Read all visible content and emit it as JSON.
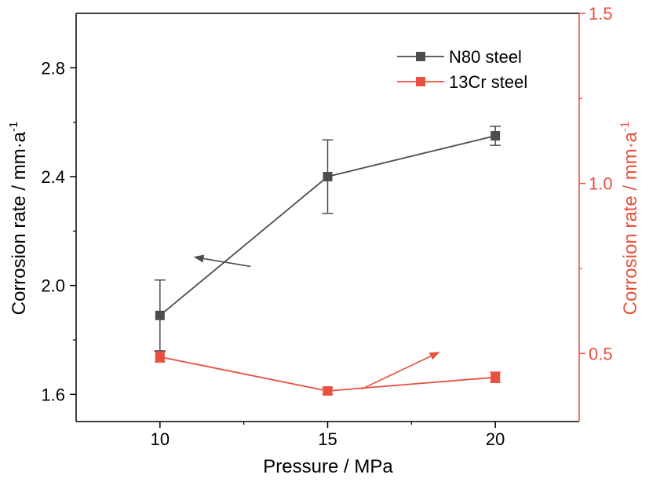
{
  "chart_data": {
    "type": "line",
    "xlabel": "Pressure / MPa",
    "ylabel_left": {
      "main": "Corrosion rate / mm·a",
      "sup": "-1"
    },
    "ylabel_right": {
      "main": "Corrosion rate / mm·a",
      "sup": "-1"
    },
    "xlim": [
      7.5,
      22.5
    ],
    "ylim_left": [
      1.5,
      3.0
    ],
    "ylim_right": [
      0.3,
      1.5
    ],
    "x_ticks": [
      10,
      15,
      20
    ],
    "x_tick_labels": [
      "10",
      "15",
      "20"
    ],
    "y_left_ticks": [
      1.6,
      2.0,
      2.4,
      2.8
    ],
    "y_left_tick_labels": [
      "1.6",
      "2.0",
      "2.4",
      "2.8"
    ],
    "y_right_ticks": [
      0.5,
      1.0,
      1.5
    ],
    "y_right_tick_labels": [
      "0.5",
      "1.0",
      "1.5"
    ],
    "legend_position": "top-right",
    "x": [
      10,
      15,
      20
    ],
    "series": [
      {
        "name": "N80 steel",
        "axis": "left",
        "color": "#4d4d4d",
        "values": [
          1.89,
          2.4,
          2.55
        ],
        "errors": [
          0.13,
          0.135,
          0.035
        ]
      },
      {
        "name": "13Cr steel",
        "axis": "right",
        "color": "#e8503f",
        "values": [
          0.49,
          0.39,
          0.43
        ],
        "errors": [
          0.015,
          0.01,
          0.015
        ]
      }
    ],
    "annotations": [
      {
        "type": "arrow",
        "series": "N80 steel",
        "direction": "points to left axis"
      },
      {
        "type": "arrow",
        "series": "13Cr steel",
        "direction": "points to right axis"
      }
    ],
    "colors": {
      "right_axis": "#e8503f",
      "left_axis": "#000000"
    }
  }
}
